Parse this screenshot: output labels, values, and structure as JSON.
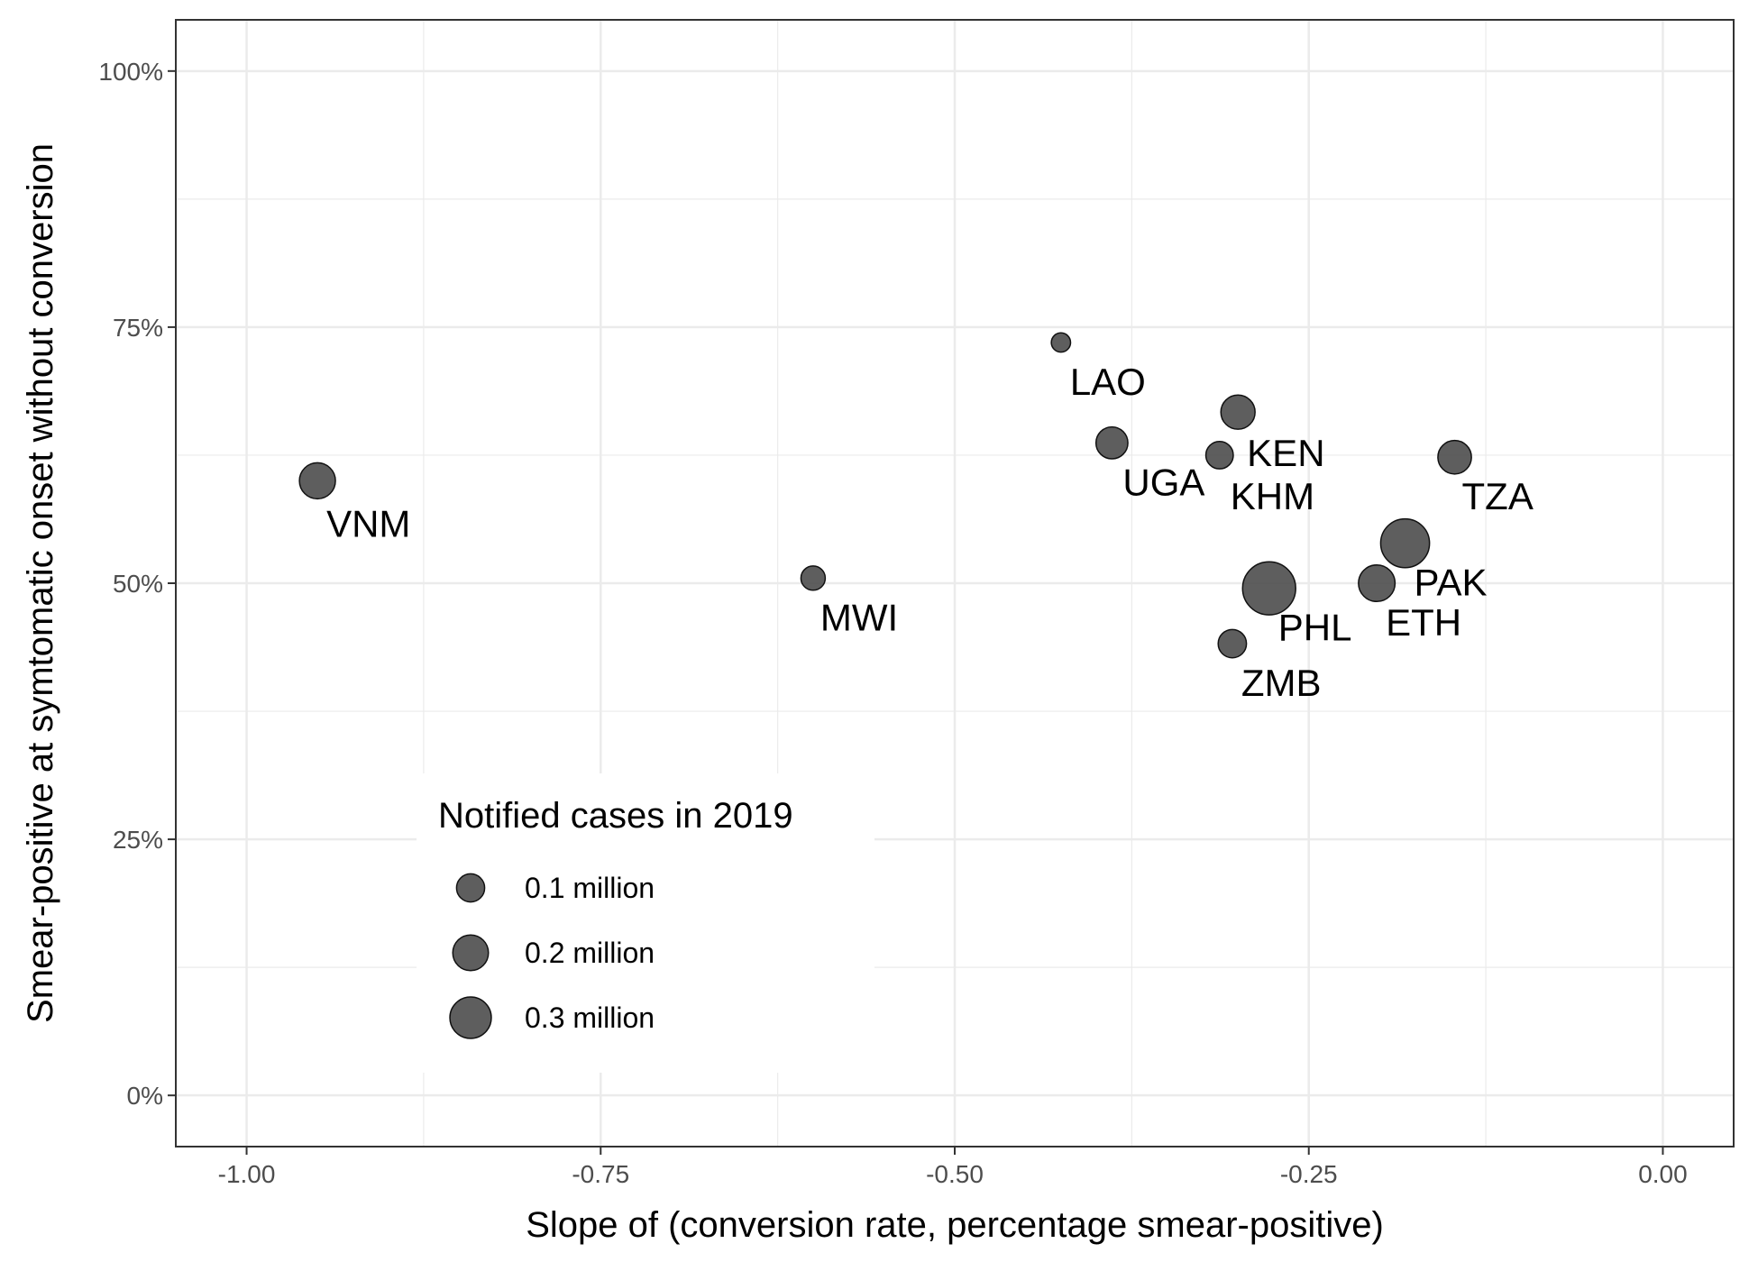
{
  "chart_data": {
    "type": "scatter",
    "xlabel": "Slope of (conversion rate, percentage smear-positive)",
    "ylabel": "Smear-positive at symtomatic onset without conversion",
    "xlim": [
      -1.05,
      0.05
    ],
    "ylim": [
      -0.05,
      1.05
    ],
    "x_ticks": [
      -1.0,
      -0.75,
      -0.5,
      -0.25,
      0.0
    ],
    "x_tick_labels": [
      "-1.00",
      "-0.75",
      "-0.50",
      "-0.25",
      "0.00"
    ],
    "y_ticks": [
      0,
      0.25,
      0.5,
      0.75,
      1.0
    ],
    "y_tick_labels": [
      "0%",
      "25%",
      "50%",
      "75%",
      "100%"
    ],
    "grid": true,
    "point_color": "#4d4d4d",
    "points": [
      {
        "label": "VNM",
        "x": -0.95,
        "y": 0.6,
        "size": 0.1
      },
      {
        "label": "MWI",
        "x": -0.6,
        "y": 0.505,
        "size": 0.025
      },
      {
        "label": "LAO",
        "x": -0.425,
        "y": 0.735,
        "size": 0.008
      },
      {
        "label": "UGA",
        "x": -0.389,
        "y": 0.637,
        "size": 0.068
      },
      {
        "label": "KEN",
        "x": -0.3,
        "y": 0.667,
        "size": 0.085
      },
      {
        "label": "KHM",
        "x": -0.313,
        "y": 0.625,
        "size": 0.04
      },
      {
        "label": "TZA",
        "x": -0.147,
        "y": 0.623,
        "size": 0.08
      },
      {
        "label": "PAK",
        "x": -0.182,
        "y": 0.539,
        "size": 0.24
      },
      {
        "label": "ETH",
        "x": -0.202,
        "y": 0.5,
        "size": 0.105
      },
      {
        "label": "PHL",
        "x": -0.278,
        "y": 0.495,
        "size": 0.3
      },
      {
        "label": "ZMB",
        "x": -0.304,
        "y": 0.441,
        "size": 0.045
      }
    ],
    "legend": {
      "title": "Notified cases in 2019",
      "placement": "bottom-left",
      "entries": [
        {
          "label": "0.1 million",
          "size": 0.1
        },
        {
          "label": "0.2 million",
          "size": 0.2
        },
        {
          "label": "0.3 million",
          "size": 0.3
        }
      ]
    }
  }
}
